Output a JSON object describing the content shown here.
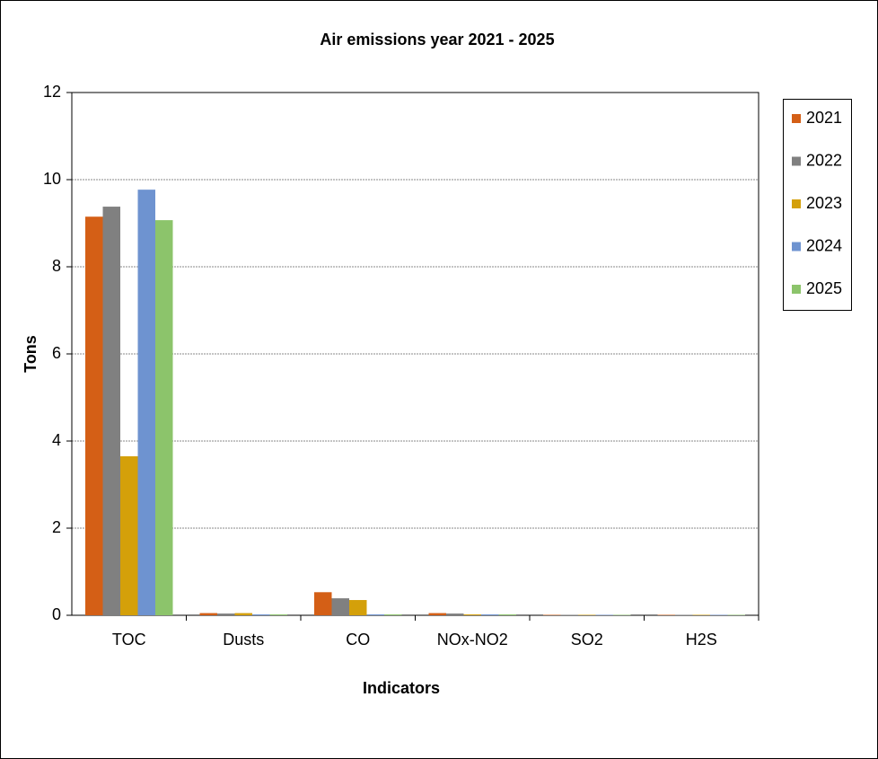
{
  "chart_data": {
    "type": "bar",
    "title": "Air emissions year 2021 - 2025",
    "x_label": "Indicators",
    "y_label": "Tons",
    "categories": [
      "TOC",
      "Dusts",
      "CO",
      "NOx-NO2",
      "SO2",
      "H2S"
    ],
    "series": [
      {
        "name": "2021",
        "color": "#d45f16",
        "values": [
          9.15,
          0.05,
          0.53,
          0.05,
          0.01,
          0.01
        ]
      },
      {
        "name": "2022",
        "color": "#808080",
        "values": [
          9.38,
          0.04,
          0.39,
          0.04,
          0.01,
          0.01
        ]
      },
      {
        "name": "2023",
        "color": "#d4a00a",
        "values": [
          3.65,
          0.05,
          0.35,
          0.02,
          0.01,
          0.01
        ]
      },
      {
        "name": "2024",
        "color": "#6e93d0",
        "values": [
          9.77,
          0.02,
          0.02,
          0.02,
          0.01,
          0.01
        ]
      },
      {
        "name": "2025",
        "color": "#8cc46b",
        "values": [
          9.07,
          0.02,
          0.02,
          0.02,
          0.01,
          0.01
        ]
      }
    ],
    "ylim": [
      0,
      12
    ],
    "yticks": [
      0,
      2,
      4,
      6,
      8,
      10,
      12
    ],
    "grid": true,
    "legend": "right"
  }
}
